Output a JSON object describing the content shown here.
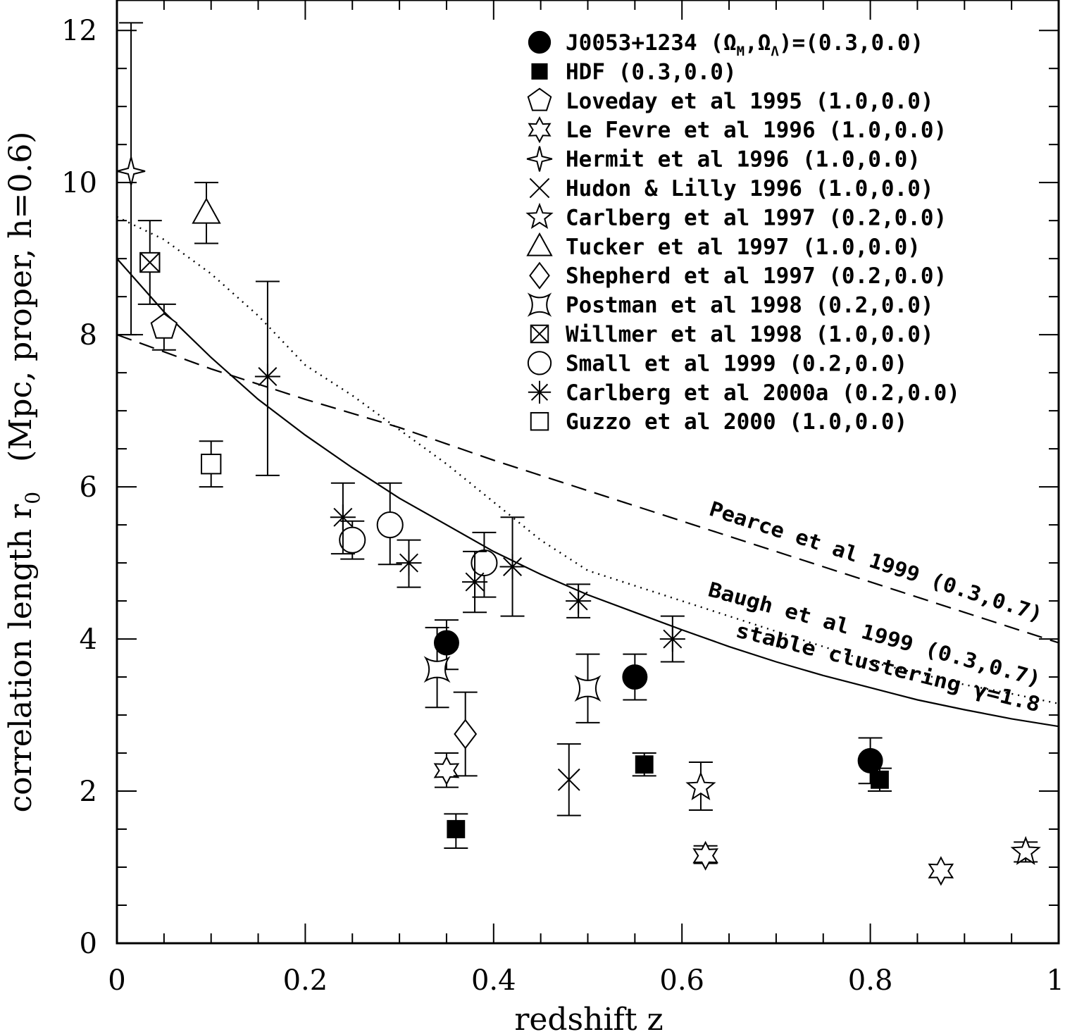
{
  "chart_data": {
    "type": "scatter",
    "xlabel": "redshift   z",
    "ylabel": "correlation length   r",
    "ylabel_subscript": "0",
    "ylabel_units": "(Mpc, proper, h=0.6)",
    "xlim": [
      0,
      1
    ],
    "ylim": [
      0,
      12.4
    ],
    "x_ticks": [
      0,
      0.2,
      0.4,
      0.6,
      0.8,
      1
    ],
    "x_tick_labels": [
      "0",
      "0.2",
      "0.4",
      "0.6",
      "0.8",
      "1"
    ],
    "y_ticks": [
      0,
      2,
      4,
      6,
      8,
      10,
      12
    ],
    "y_tick_labels": [
      "0",
      "2",
      "4",
      "6",
      "8",
      "10",
      "12"
    ],
    "legend_position": "top-right",
    "series": [
      {
        "name": "J0053+1234",
        "cosmology": "(0.3,0.0)",
        "marker": "filled-circle",
        "points": [
          {
            "x": 0.35,
            "y": 3.95,
            "lo": 3.6,
            "hi": 4.25
          },
          {
            "x": 0.55,
            "y": 3.5,
            "lo": 3.2,
            "hi": 3.8
          },
          {
            "x": 0.8,
            "y": 2.4,
            "lo": 2.1,
            "hi": 2.7
          }
        ]
      },
      {
        "name": "HDF",
        "cosmology": "(0.3,0.0)",
        "marker": "filled-square",
        "points": [
          {
            "x": 0.36,
            "y": 1.5,
            "lo": 1.25,
            "hi": 1.7
          },
          {
            "x": 0.56,
            "y": 2.35,
            "lo": 2.2,
            "hi": 2.5
          },
          {
            "x": 0.81,
            "y": 2.15,
            "lo": 2.0,
            "hi": 2.3
          }
        ]
      },
      {
        "name": "Loveday et al 1995",
        "cosmology": "(1.0,0.0)",
        "marker": "pentagon",
        "points": [
          {
            "x": 0.05,
            "y": 8.1,
            "lo": 7.8,
            "hi": 8.4
          }
        ]
      },
      {
        "name": "Le Fevre et al 1996",
        "cosmology": "(1.0,0.0)",
        "marker": "six-star",
        "points": [
          {
            "x": 0.35,
            "y": 2.27,
            "lo": 2.05,
            "hi": 2.5
          },
          {
            "x": 0.625,
            "y": 1.15,
            "lo": 1.05,
            "hi": 1.28
          },
          {
            "x": 0.875,
            "y": 0.95,
            "lo": 0.87,
            "hi": 1.03
          }
        ]
      },
      {
        "name": "Hermit et al 1996",
        "cosmology": "(1.0,0.0)",
        "marker": "four-star",
        "points": [
          {
            "x": 0.015,
            "y": 10.15,
            "lo": 8.0,
            "hi": 12.1
          }
        ]
      },
      {
        "name": "Hudon & Lilly 1996",
        "cosmology": "(1.0,0.0)",
        "marker": "cross",
        "points": [
          {
            "x": 0.48,
            "y": 2.15,
            "lo": 1.68,
            "hi": 2.62
          }
        ]
      },
      {
        "name": "Carlberg et al 1997",
        "cosmology": "(0.2,0.0)",
        "marker": "five-star",
        "points": [
          {
            "x": 0.62,
            "y": 2.05,
            "lo": 1.75,
            "hi": 2.38
          },
          {
            "x": 0.965,
            "y": 1.2,
            "lo": 1.07,
            "hi": 1.33
          }
        ]
      },
      {
        "name": "Tucker et al 1997",
        "cosmology": "(1.0,0.0)",
        "marker": "triangle",
        "points": [
          {
            "x": 0.095,
            "y": 9.6,
            "lo": 9.2,
            "hi": 10.0
          }
        ]
      },
      {
        "name": "Shepherd et al 1997",
        "cosmology": "(0.2,0.0)",
        "marker": "diamond",
        "points": [
          {
            "x": 0.37,
            "y": 2.75,
            "lo": 2.2,
            "hi": 3.3
          }
        ]
      },
      {
        "name": "Postman et al 1998",
        "cosmology": "(0.2,0.0)",
        "marker": "concave-square",
        "points": [
          {
            "x": 0.34,
            "y": 3.6,
            "lo": 3.1,
            "hi": 4.15
          },
          {
            "x": 0.5,
            "y": 3.35,
            "lo": 2.9,
            "hi": 3.8
          }
        ]
      },
      {
        "name": "Willmer et al 1998",
        "cosmology": "(1.0,0.0)",
        "marker": "crossed-square",
        "points": [
          {
            "x": 0.035,
            "y": 8.95,
            "lo": 8.4,
            "hi": 9.5
          }
        ]
      },
      {
        "name": "Small et al 1999",
        "cosmology": "(0.2,0.0)",
        "marker": "open-circle",
        "points": [
          {
            "x": 0.25,
            "y": 5.3,
            "lo": 5.05,
            "hi": 5.55
          },
          {
            "x": 0.29,
            "y": 5.5,
            "lo": 4.98,
            "hi": 6.05
          },
          {
            "x": 0.39,
            "y": 5.0,
            "lo": 4.55,
            "hi": 5.4
          }
        ]
      },
      {
        "name": "Carlberg et al 2000a",
        "cosmology": "(0.2,0.0)",
        "marker": "asterisk",
        "points": [
          {
            "x": 0.16,
            "y": 7.45,
            "lo": 6.15,
            "hi": 8.7
          },
          {
            "x": 0.24,
            "y": 5.6,
            "lo": 5.12,
            "hi": 6.05
          },
          {
            "x": 0.31,
            "y": 5.0,
            "lo": 4.68,
            "hi": 5.3
          },
          {
            "x": 0.38,
            "y": 4.75,
            "lo": 4.35,
            "hi": 5.15
          },
          {
            "x": 0.42,
            "y": 4.95,
            "lo": 4.3,
            "hi": 5.6
          },
          {
            "x": 0.49,
            "y": 4.5,
            "lo": 4.28,
            "hi": 4.72
          },
          {
            "x": 0.59,
            "y": 4.0,
            "lo": 3.7,
            "hi": 4.3
          }
        ]
      },
      {
        "name": "Guzzo et al 2000",
        "cosmology": "(1.0,0.0)",
        "marker": "open-square",
        "points": [
          {
            "x": 0.1,
            "y": 6.3,
            "lo": 6.0,
            "hi": 6.6
          }
        ]
      }
    ],
    "legend_header": {
      "name": "J0053+1234",
      "cosmology_prefix": "(Ω",
      "sub_m": "M",
      "sep": ",Ω",
      "sub_l": "Λ",
      "cosmology_suffix": ")=(0.3,0.0)"
    },
    "curves": [
      {
        "name": "stable clustering",
        "label_text": "stable clustering γ=1.8",
        "style": "solid",
        "x": [
          0,
          0.05,
          0.1,
          0.15,
          0.2,
          0.25,
          0.3,
          0.35,
          0.4,
          0.45,
          0.5,
          0.55,
          0.6,
          0.65,
          0.7,
          0.75,
          0.8,
          0.85,
          0.9,
          0.95,
          1.0
        ],
        "y": [
          9.0,
          8.3,
          7.7,
          7.15,
          6.68,
          6.25,
          5.85,
          5.5,
          5.15,
          4.85,
          4.58,
          4.35,
          4.12,
          3.9,
          3.7,
          3.52,
          3.36,
          3.2,
          3.07,
          2.95,
          2.85
        ]
      },
      {
        "name": "Pearce et al 1999",
        "label_text": "Pearce et al 1999 (0.3,0.7)",
        "style": "dashed",
        "x": [
          0,
          0.1,
          0.2,
          0.3,
          0.4,
          0.5,
          0.6,
          0.7,
          0.8,
          0.9,
          1.0
        ],
        "y": [
          8.0,
          7.55,
          7.15,
          6.78,
          6.35,
          5.95,
          5.55,
          5.15,
          4.75,
          4.35,
          3.95
        ]
      },
      {
        "name": "Baugh et al 1999",
        "label_text": "Baugh et al 1999 (0.3,0.7)",
        "style": "dotted",
        "x": [
          0,
          0.05,
          0.1,
          0.15,
          0.2,
          0.25,
          0.3,
          0.35,
          0.4,
          0.45,
          0.5,
          0.55,
          0.6,
          0.65,
          0.7,
          0.75,
          0.8,
          0.85,
          0.9,
          0.95,
          1.0
        ],
        "y": [
          9.55,
          9.25,
          8.8,
          8.25,
          7.6,
          7.2,
          6.75,
          6.3,
          5.8,
          5.3,
          4.9,
          4.7,
          4.5,
          4.3,
          4.1,
          3.9,
          3.7,
          3.55,
          3.4,
          3.28,
          3.15
        ]
      }
    ]
  }
}
